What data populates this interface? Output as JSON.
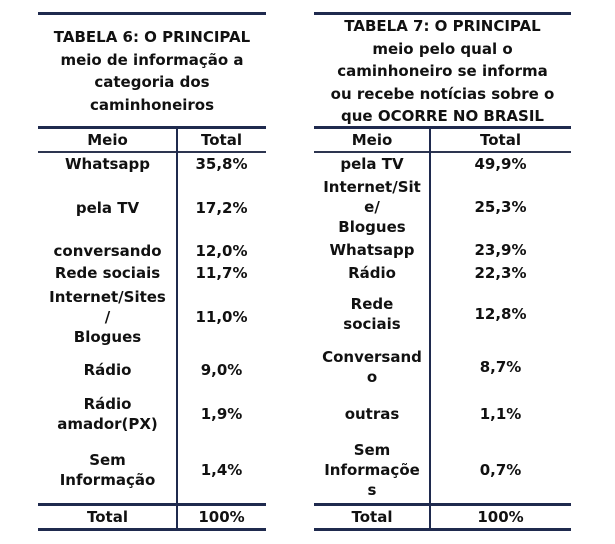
{
  "table6": {
    "title": "TABELA 6: O PRINCIPAL\nmeio de informação a\ncategoria dos\ncaminhoneiros",
    "header": {
      "meio": "Meio",
      "total": "Total"
    },
    "rows": [
      {
        "meio": "Whatsapp",
        "total": "35,8%"
      },
      {
        "meio": "pela TV",
        "total": "17,2%"
      },
      {
        "meio": "conversando",
        "total": "12,0%"
      },
      {
        "meio": "Rede sociais",
        "total": "11,7%"
      },
      {
        "meio": "Internet/Sites\n/\nBlogues",
        "total": "11,0%"
      },
      {
        "meio": "Rádio",
        "total": "9,0%"
      },
      {
        "meio": "Rádio\namador(PX)",
        "total": "1,9%"
      },
      {
        "meio": "Sem\nInformação",
        "total": "1,4%"
      }
    ],
    "footer": {
      "meio": "Total",
      "total": "100%"
    }
  },
  "table7": {
    "title": "TABELA 7: O PRINCIPAL\nmeio pelo qual o\ncaminhoneiro se informa\nou recebe notícias sobre o\nque OCORRE NO BRASIL",
    "header": {
      "meio": "Meio",
      "total": "Total"
    },
    "rows": [
      {
        "meio": "pela TV",
        "total": "49,9%"
      },
      {
        "meio": "Internet/Sit\ne/\nBlogues",
        "total": "25,3%"
      },
      {
        "meio": "Whatsapp",
        "total": "23,9%"
      },
      {
        "meio": "Rádio",
        "total": "22,3%"
      },
      {
        "meio": "Rede\nsociais",
        "total": "12,8%"
      },
      {
        "meio": "Conversand\no",
        "total": "8,7%"
      },
      {
        "meio": "outras",
        "total": "1,1%"
      },
      {
        "meio": "Sem\nInformaçõe\ns",
        "total": "0,7%"
      }
    ],
    "footer": {
      "meio": "Total",
      "total": "100%"
    }
  }
}
